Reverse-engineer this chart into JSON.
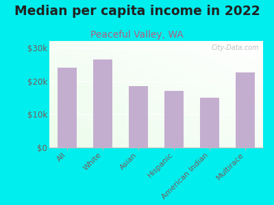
{
  "title": "Median per capita income in 2022",
  "subtitle": "Peaceful Valley, WA",
  "categories": [
    "All",
    "White",
    "Asian",
    "Hispanic",
    "American Indian",
    "Multirace"
  ],
  "values": [
    24000,
    26500,
    18500,
    17000,
    15000,
    22500
  ],
  "bar_color": "#c4aed0",
  "background_color": "#00EEEE",
  "plot_bg_top": "#f8f8f8",
  "plot_bg_bottom_left": "#ddf0d8",
  "title_color": "#222222",
  "subtitle_color": "#b06080",
  "axis_label_color": "#7a5a5a",
  "tick_color": "#7a5a5a",
  "ylim": [
    0,
    32000
  ],
  "yticks": [
    0,
    10000,
    20000,
    30000
  ],
  "ytick_labels": [
    "$0",
    "$10k",
    "$20k",
    "$30k"
  ],
  "watermark": "City-Data.com",
  "title_fontsize": 13.5,
  "subtitle_fontsize": 10,
  "tick_fontsize": 8.5,
  "xtick_fontsize": 8
}
